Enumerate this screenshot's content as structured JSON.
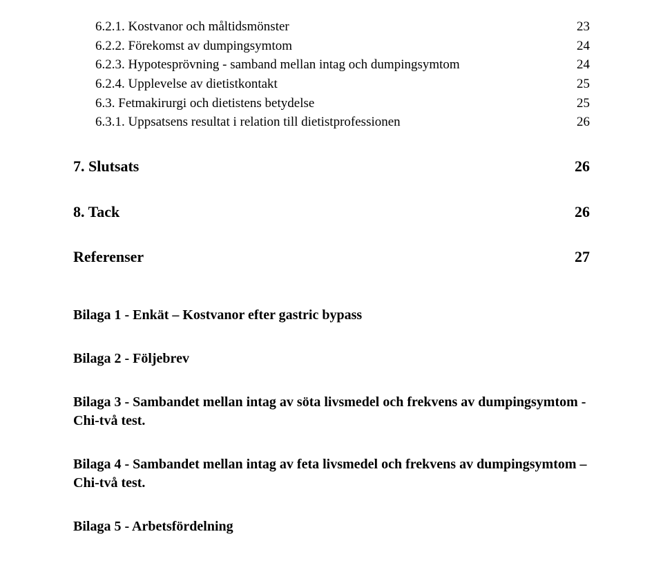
{
  "toc": {
    "sub": [
      {
        "label": "6.2.1. Kostvanor och måltidsmönster",
        "page": "23"
      },
      {
        "label": "6.2.2. Förekomst av dumpingsymtom",
        "page": "24"
      },
      {
        "label": "6.2.3. Hypotesprövning - samband mellan intag och dumpingsymtom",
        "page": "24"
      },
      {
        "label": "6.2.4. Upplevelse av dietistkontakt",
        "page": "25"
      },
      {
        "label": "6.3. Fetmakirurgi och dietistens betydelse",
        "page": "25"
      },
      {
        "label": "6.3.1. Uppsatsens resultat i relation till dietistprofessionen",
        "page": "26"
      }
    ],
    "main": [
      {
        "label": "7. Slutsats",
        "page": "26"
      },
      {
        "label": "8. Tack",
        "page": "26"
      },
      {
        "label": "Referenser",
        "page": "27"
      }
    ]
  },
  "bilaga": {
    "b1": "Bilaga 1 - Enkät – Kostvanor efter gastric bypass",
    "b2": "Bilaga 2 - Följebrev",
    "b3_l1": "Bilaga 3 - Sambandet mellan intag av söta livsmedel och frekvens av dumpingsymtom -",
    "b3_l2": "Chi-två test.",
    "b4_l1": "Bilaga 4 - Sambandet mellan intag av feta livsmedel och frekvens av dumpingsymtom –",
    "b4_l2": "Chi-två test.",
    "b5": "Bilaga 5 - Arbetsfördelning"
  }
}
